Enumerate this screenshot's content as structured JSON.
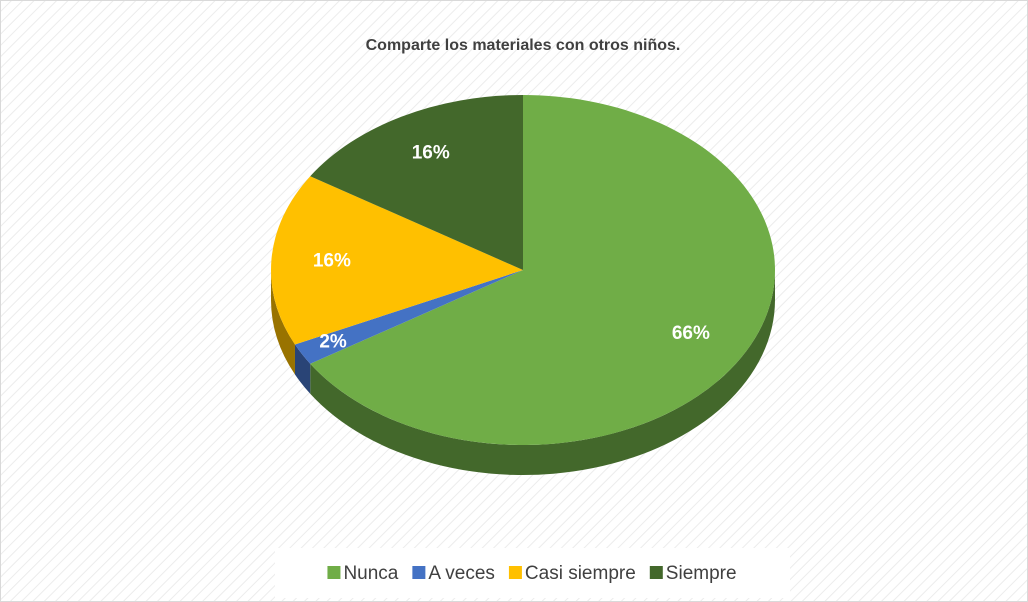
{
  "chart_data": {
    "type": "pie",
    "title": "Comparte los materiales con otros niños.",
    "categories": [
      "Nunca",
      "A veces",
      "Casi siempre",
      "Siempre"
    ],
    "values": [
      66,
      2,
      16,
      16
    ],
    "value_labels": [
      "66%",
      "2%",
      "16%",
      "16%"
    ],
    "colors": [
      "#70ad47",
      "#4472c4",
      "#ffc000",
      "#43682b"
    ],
    "legend": "bottom"
  }
}
